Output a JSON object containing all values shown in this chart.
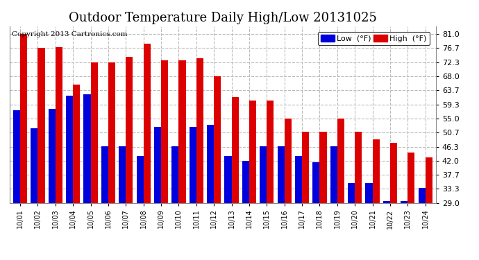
{
  "title": "Outdoor Temperature Daily High/Low 20131025",
  "copyright": "Copyright 2013 Cartronics.com",
  "legend_low": "Low  (°F)",
  "legend_high": "High  (°F)",
  "dates": [
    "10/01",
    "10/02",
    "10/03",
    "10/04",
    "10/05",
    "10/06",
    "10/07",
    "10/08",
    "10/09",
    "10/10",
    "10/11",
    "10/12",
    "10/13",
    "10/14",
    "10/15",
    "10/16",
    "10/17",
    "10/18",
    "10/19",
    "10/20",
    "10/21",
    "10/22",
    "10/23",
    "10/24"
  ],
  "highs": [
    81.0,
    76.7,
    77.0,
    65.5,
    72.3,
    72.3,
    74.0,
    78.0,
    73.0,
    73.0,
    73.5,
    68.0,
    61.5,
    60.5,
    60.5,
    55.0,
    51.0,
    51.0,
    55.0,
    51.0,
    48.5,
    47.5,
    44.5,
    43.0
  ],
  "lows": [
    57.5,
    52.0,
    58.0,
    62.0,
    62.5,
    46.5,
    46.5,
    43.5,
    52.5,
    46.5,
    52.5,
    53.0,
    43.5,
    42.0,
    46.5,
    46.5,
    43.5,
    41.5,
    46.5,
    35.0,
    35.0,
    29.5,
    29.5,
    33.5
  ],
  "bar_color_low": "#0000dd",
  "bar_color_high": "#dd0000",
  "bg_color": "#ffffff",
  "plot_bg_color": "#ffffff",
  "grid_color": "#bbbbbb",
  "ylim_min": 29.0,
  "ylim_max": 83.5,
  "yticks": [
    29.0,
    33.3,
    37.7,
    42.0,
    46.3,
    50.7,
    55.0,
    59.3,
    63.7,
    68.0,
    72.3,
    76.7,
    81.0
  ],
  "ytick_labels": [
    "29.0",
    "33.3",
    "37.7",
    "42.0",
    "46.3",
    "50.7",
    "55.0",
    "59.3",
    "63.7",
    "68.0",
    "72.3",
    "76.7",
    "81.0"
  ],
  "title_fontsize": 13,
  "copyright_fontsize": 7.5,
  "bar_width": 0.4,
  "figwidth": 6.9,
  "figheight": 3.75,
  "dpi": 100
}
